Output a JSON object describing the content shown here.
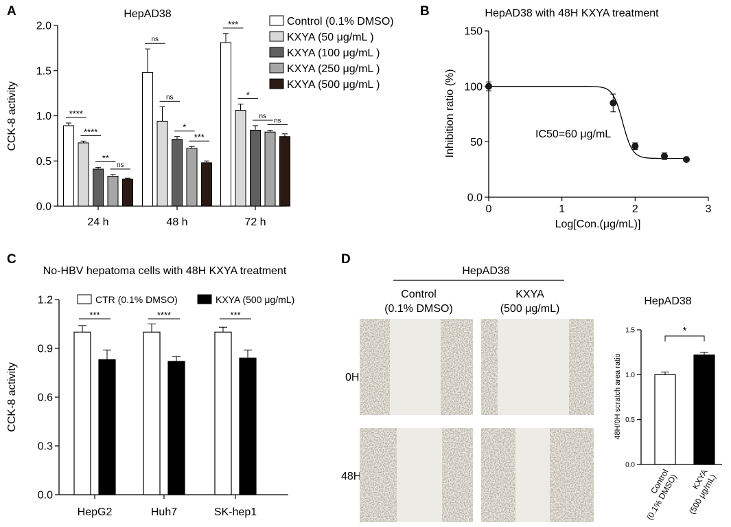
{
  "panels": {
    "A": {
      "letter": "A",
      "chart_data": {
        "type": "bar",
        "title": "HepAD38",
        "ylabel": "CCK-8 activity",
        "ylim": [
          0,
          2.0
        ],
        "yticks": [
          "0.0",
          "0.5",
          "1.0",
          "1.5",
          "2.0"
        ],
        "categories": [
          "24 h",
          "48 h",
          "72 h"
        ],
        "legend_position": "top-right",
        "series": [
          {
            "name": "Control (0.1% DMSO)",
            "color": "#ffffff",
            "values": [
              0.89,
              1.48,
              1.81
            ],
            "errors": [
              0.03,
              0.26,
              0.1
            ]
          },
          {
            "name": "KXYA (50 μg/mL )",
            "color": "#d9d9d9",
            "values": [
              0.7,
              0.94,
              1.06
            ],
            "errors": [
              0.02,
              0.16,
              0.07
            ]
          },
          {
            "name": "KXYA (100 μg/mL )",
            "color": "#5f5f5f",
            "values": [
              0.41,
              0.74,
              0.84
            ],
            "errors": [
              0.02,
              0.03,
              0.05
            ]
          },
          {
            "name": "KXYA (250 μg/mL )",
            "color": "#a6a6a6",
            "values": [
              0.33,
              0.64,
              0.82
            ],
            "errors": [
              0.02,
              0.02,
              0.02
            ]
          },
          {
            "name": "KXYA (500 μg/mL )",
            "color": "#2b1a14",
            "values": [
              0.3,
              0.48,
              0.77
            ],
            "errors": [
              0.01,
              0.02,
              0.03
            ]
          }
        ],
        "significance": [
          {
            "cat": 0,
            "a": 0,
            "b": 1,
            "label": "****"
          },
          {
            "cat": 0,
            "a": 1,
            "b": 2,
            "label": "****"
          },
          {
            "cat": 0,
            "a": 2,
            "b": 3,
            "label": "**"
          },
          {
            "cat": 0,
            "a": 3,
            "b": 4,
            "label": "ns"
          },
          {
            "cat": 1,
            "a": 0,
            "b": 1,
            "label": "ns"
          },
          {
            "cat": 1,
            "a": 1,
            "b": 2,
            "label": "ns"
          },
          {
            "cat": 1,
            "a": 2,
            "b": 3,
            "label": "*"
          },
          {
            "cat": 1,
            "a": 3,
            "b": 4,
            "label": "***"
          },
          {
            "cat": 2,
            "a": 0,
            "b": 1,
            "label": "***"
          },
          {
            "cat": 2,
            "a": 1,
            "b": 2,
            "label": "*"
          },
          {
            "cat": 2,
            "a": 2,
            "b": 3,
            "label": "ns"
          },
          {
            "cat": 2,
            "a": 3,
            "b": 4,
            "label": "ns"
          }
        ]
      }
    },
    "B": {
      "letter": "B",
      "chart_data": {
        "type": "scatter",
        "title": "HepAD38 with 48H KXYA treatment",
        "xlabel": "Log[Con.(μg/mL)]",
        "ylabel": "Inhibition ratio (%)",
        "xlim": [
          0,
          3
        ],
        "ylim": [
          0,
          150
        ],
        "xticks": [
          "0",
          "1",
          "2",
          "3"
        ],
        "yticks": [
          "0.0",
          "50",
          "100",
          "150"
        ],
        "points": [
          {
            "x": 0,
            "y": 100,
            "err": 4
          },
          {
            "x": 1.7,
            "y": 85,
            "err": 8
          },
          {
            "x": 2.0,
            "y": 46,
            "err": 3
          },
          {
            "x": 2.4,
            "y": 37,
            "err": 3
          },
          {
            "x": 2.7,
            "y": 34,
            "err": 1
          }
        ],
        "fit": {
          "top": 100,
          "bottom": 35,
          "logIC50": 1.83,
          "hill": 6.5
        },
        "annotation": "IC50=60 μg/mL"
      }
    },
    "C": {
      "letter": "C",
      "chart_data": {
        "type": "bar",
        "title": "No-HBV hepatoma cells with 48H KXYA treatment",
        "ylabel": "CCK-8 activity",
        "ylim": [
          0,
          1.2
        ],
        "yticks": [
          "0.0",
          "0.3",
          "0.6",
          "0.9",
          "1.2"
        ],
        "categories": [
          "HepG2",
          "Huh7",
          "SK-hep1"
        ],
        "legend_position": "top",
        "series": [
          {
            "name": "CTR (0.1% DMSO)",
            "color": "#ffffff",
            "values": [
              1.0,
              1.0,
              1.0
            ],
            "errors": [
              0.04,
              0.05,
              0.03
            ]
          },
          {
            "name": "KXYA (500 μg/mL)",
            "color": "#000000",
            "values": [
              0.83,
              0.82,
              0.84
            ],
            "errors": [
              0.06,
              0.03,
              0.05
            ]
          }
        ],
        "significance": [
          {
            "cat": 0,
            "a": 0,
            "b": 1,
            "label": "***"
          },
          {
            "cat": 1,
            "a": 0,
            "b": 1,
            "label": "****"
          },
          {
            "cat": 2,
            "a": 0,
            "b": 1,
            "label": "***"
          }
        ]
      }
    },
    "D": {
      "letter": "D",
      "group_label": "HepAD38",
      "col_labels": [
        [
          "Control",
          "(0.1% DMSO)"
        ],
        [
          "KXYA",
          "(500 μg/mL)"
        ]
      ],
      "row_labels": [
        "0H",
        "48H"
      ],
      "chart_data": {
        "type": "bar",
        "title": "HepAD38",
        "ylabel": "48H/0H scratch area ratio",
        "ylim": [
          0,
          1.5
        ],
        "yticks": [
          "0.0",
          "0.5",
          "1.0",
          "1.5"
        ],
        "categories": [
          [
            "Control",
            "(0.1% DMSO)"
          ],
          [
            "KXYA",
            "(500 μg/mL)"
          ]
        ],
        "series": [
          {
            "name": "",
            "values": [
              1.0,
              1.22
            ],
            "errors": [
              0.03,
              0.03
            ],
            "colors": [
              "#ffffff",
              "#000000"
            ]
          }
        ],
        "significance": [
          {
            "a": 0,
            "b": 1,
            "label": "*"
          }
        ]
      }
    }
  }
}
